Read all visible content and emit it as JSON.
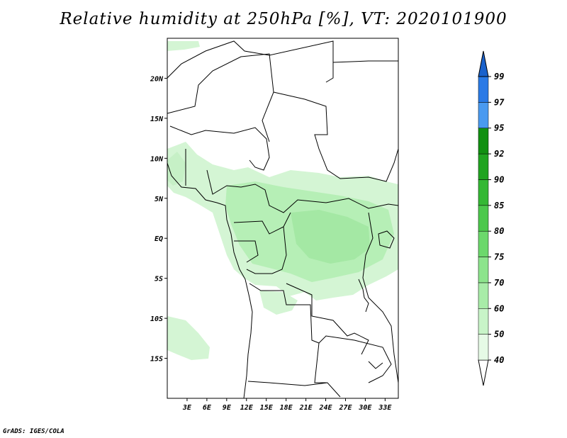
{
  "title": "Relative humidity at 250hPa [%], VT: 2020101900",
  "credit": "GrADS: IGES/COLA",
  "axes": {
    "lat_labels": [
      "20N",
      "15N",
      "10N",
      "5N",
      "EQ",
      "5S",
      "10S",
      "15S"
    ],
    "lat_values": [
      20,
      15,
      10,
      5,
      0,
      -5,
      -10,
      -15
    ],
    "lon_labels": [
      "3E",
      "6E",
      "9E",
      "12E",
      "15E",
      "18E",
      "21E",
      "24E",
      "27E",
      "30E",
      "33E"
    ],
    "lon_values": [
      3,
      6,
      9,
      12,
      15,
      18,
      21,
      24,
      27,
      30,
      33
    ],
    "lat_range": [
      -20,
      25
    ],
    "lon_range": [
      0,
      35
    ]
  },
  "colorbar": {
    "levels": [
      "40",
      "50",
      "60",
      "70",
      "75",
      "80",
      "85",
      "90",
      "92",
      "95",
      "97",
      "99"
    ],
    "colors": [
      "#ffffff",
      "#e6fae6",
      "#c8f4c8",
      "#a8eca8",
      "#8ce48c",
      "#6cd86c",
      "#4cc84c",
      "#34b834",
      "#20a420",
      "#119011",
      "#4a9af0",
      "#2a7ae6",
      "#1a62cc"
    ]
  },
  "colors": {
    "field_light": "#d4f5d4",
    "field_mid": "#b6efb6",
    "field_dark": "#9fe69f",
    "border": "#000000"
  }
}
